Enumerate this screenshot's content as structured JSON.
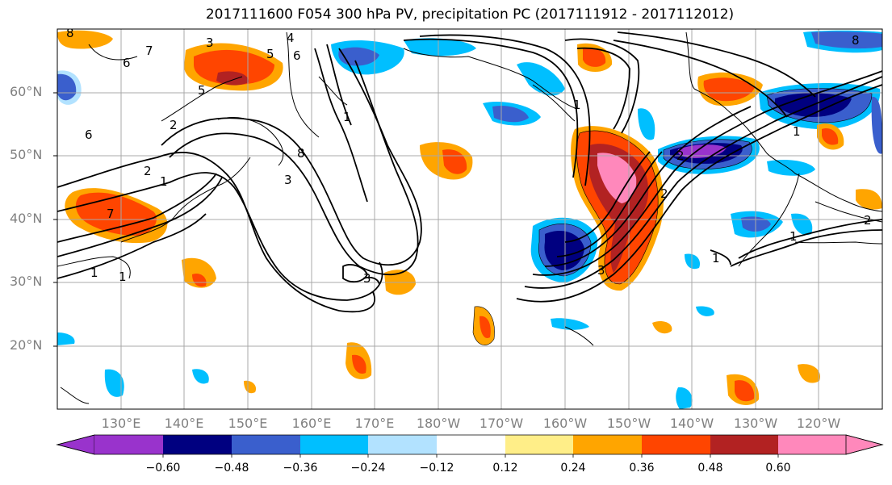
{
  "title": "2017111600 F054 300 hPa PV, precipitation PC (2017111912 - 2017112012)",
  "latitude_labels": [
    {
      "text": "60°N",
      "value": 60
    },
    {
      "text": "50°N",
      "value": 50
    },
    {
      "text": "40°N",
      "value": 40
    },
    {
      "text": "30°N",
      "value": 30
    },
    {
      "text": "20°N",
      "value": 20
    }
  ],
  "longitude_labels": [
    "130°E",
    "140°E",
    "150°E",
    "160°E",
    "170°E",
    "180°W",
    "170°W",
    "160°W",
    "150°W",
    "140°W",
    "130°W",
    "120°W"
  ],
  "map": {
    "extent": {
      "lon_west": 120,
      "lon_east": 250,
      "lat_south": 10,
      "lat_north": 70
    },
    "gridline_color": "#a8a8a8",
    "contour_labels": [
      "8",
      "7",
      "6",
      "5",
      "4",
      "3",
      "2",
      "1",
      "6",
      "5",
      "6",
      "7",
      "1",
      "1",
      "2",
      "3",
      "1",
      "8",
      "1",
      "1",
      "2",
      "1",
      "3",
      "2",
      "8",
      "3",
      "2",
      "1"
    ]
  },
  "colorbar": {
    "colors": [
      "#9933cc",
      "#000080",
      "#3a5fcd",
      "#00bfff",
      "#b2e2ff",
      "#ffffff",
      "#ffee88",
      "#ffa500",
      "#ff4500",
      "#b22222",
      "#ff88bb"
    ],
    "tick_labels": [
      "−0.60",
      "−0.48",
      "−0.36",
      "−0.24",
      "−0.12",
      "0.12",
      "0.24",
      "0.36",
      "0.48",
      "0.60"
    ],
    "extend": "both"
  }
}
